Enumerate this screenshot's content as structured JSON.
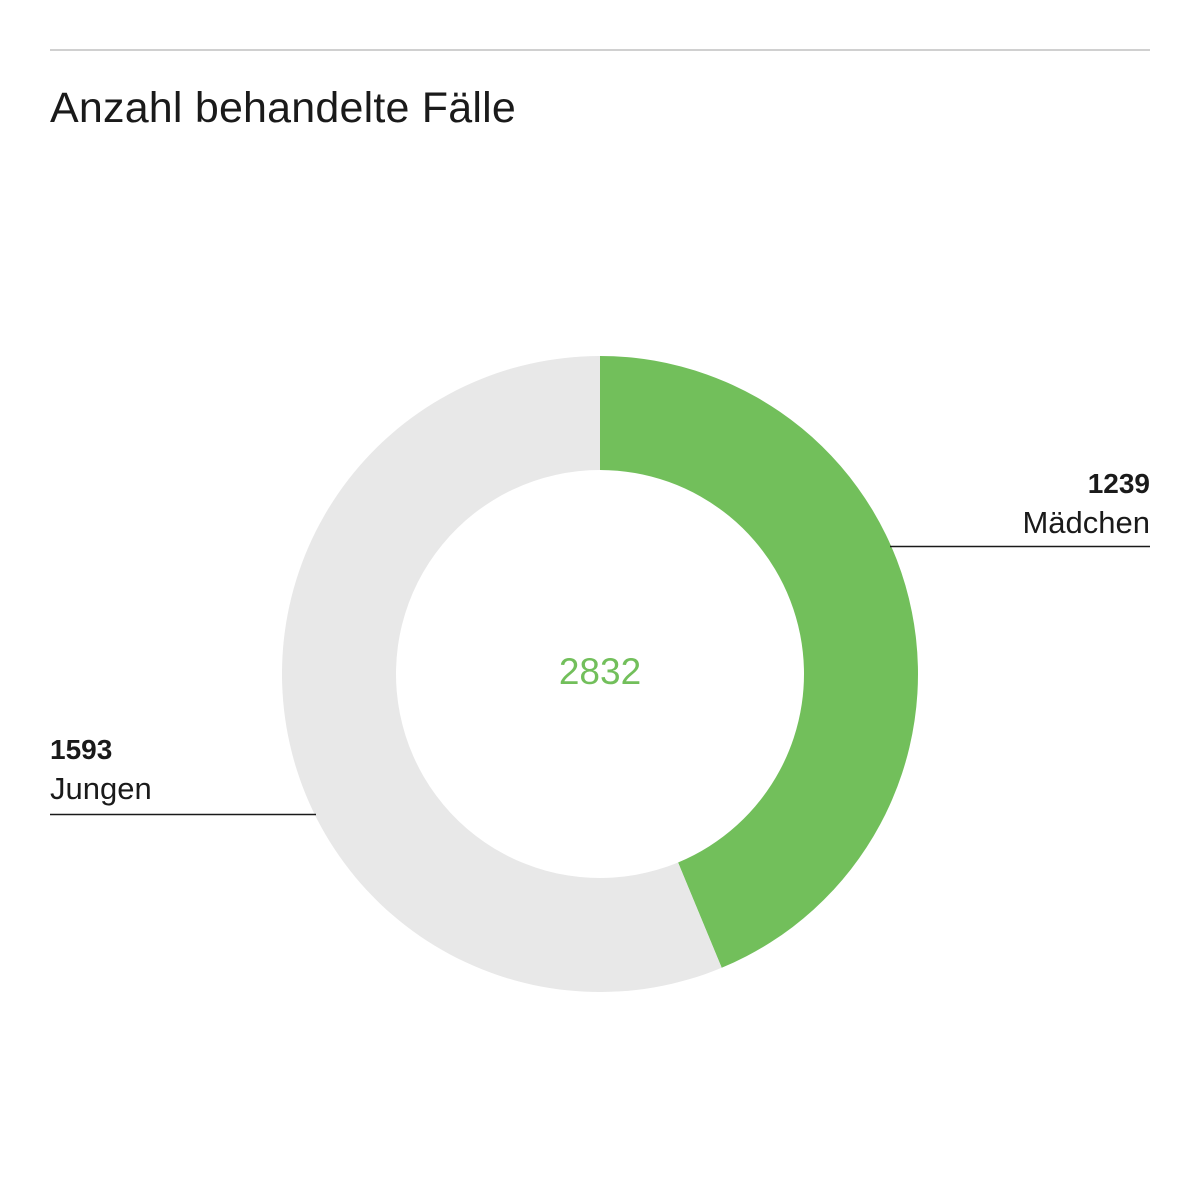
{
  "title": "Anzahl behandelte Fälle",
  "total_label": "2832",
  "colors": {
    "primary": "#72bf5b",
    "secondary": "#e8e8e8",
    "text": "#1a1a1a",
    "leader_line": "#1a1a1a"
  },
  "chart_data": {
    "type": "pie",
    "title": "Anzahl behandelte Fälle",
    "total": 2832,
    "slices": [
      {
        "name": "Mädchen",
        "value": 1239,
        "label_value": "1239",
        "color": "#72bf5b"
      },
      {
        "name": "Jungen",
        "value": 1593,
        "label_value": "1593",
        "color": "#e8e8e8"
      }
    ]
  }
}
